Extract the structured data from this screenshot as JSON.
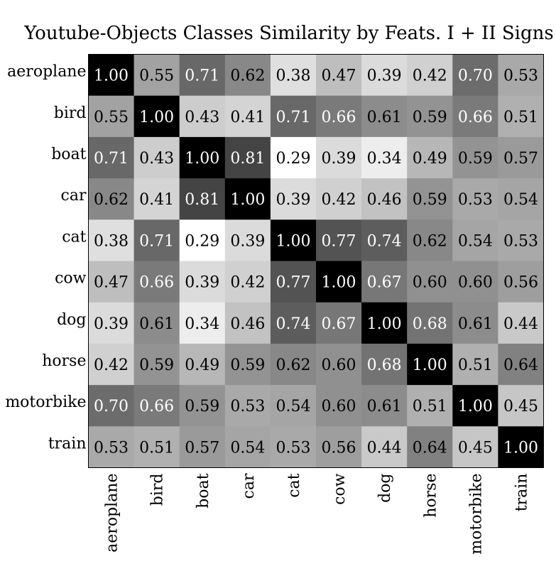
{
  "chart_data": {
    "type": "heatmap",
    "title": "Youtube-Objects Classes Similarity by Feats. I + II Signs",
    "rows": [
      "aeroplane",
      "bird",
      "boat",
      "car",
      "cat",
      "cow",
      "dog",
      "horse",
      "motorbike",
      "train"
    ],
    "cols": [
      "aeroplane",
      "bird",
      "boat",
      "car",
      "cat",
      "cow",
      "dog",
      "horse",
      "motorbike",
      "train"
    ],
    "values": [
      [
        1.0,
        0.55,
        0.71,
        0.62,
        0.38,
        0.47,
        0.39,
        0.42,
        0.7,
        0.53
      ],
      [
        0.55,
        1.0,
        0.43,
        0.41,
        0.71,
        0.66,
        0.61,
        0.59,
        0.66,
        0.51
      ],
      [
        0.71,
        0.43,
        1.0,
        0.81,
        0.29,
        0.39,
        0.34,
        0.49,
        0.59,
        0.57
      ],
      [
        0.62,
        0.41,
        0.81,
        1.0,
        0.39,
        0.42,
        0.46,
        0.59,
        0.53,
        0.54
      ],
      [
        0.38,
        0.71,
        0.29,
        0.39,
        1.0,
        0.77,
        0.74,
        0.62,
        0.54,
        0.53
      ],
      [
        0.47,
        0.66,
        0.39,
        0.42,
        0.77,
        1.0,
        0.67,
        0.6,
        0.6,
        0.56
      ],
      [
        0.39,
        0.61,
        0.34,
        0.46,
        0.74,
        0.67,
        1.0,
        0.68,
        0.61,
        0.44
      ],
      [
        0.42,
        0.59,
        0.49,
        0.59,
        0.62,
        0.6,
        0.68,
        1.0,
        0.51,
        0.64
      ],
      [
        0.7,
        0.66,
        0.59,
        0.53,
        0.54,
        0.6,
        0.61,
        0.51,
        1.0,
        0.45
      ],
      [
        0.53,
        0.51,
        0.57,
        0.54,
        0.53,
        0.56,
        0.44,
        0.64,
        0.45,
        1.0
      ]
    ],
    "value_format": "2 decimals",
    "colormap": "grayscale, darker = higher",
    "color_range": [
      0.29,
      1.0
    ],
    "text_color_dark": "#000000",
    "text_color_light": "#ffffff",
    "grid": false
  }
}
